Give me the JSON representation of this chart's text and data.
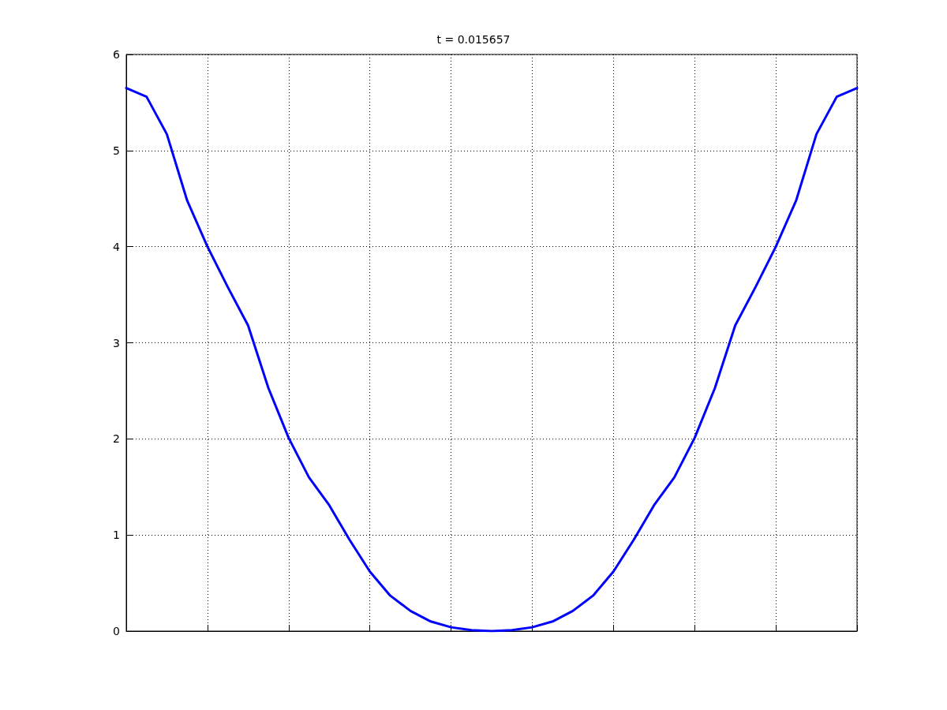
{
  "chart_data": {
    "type": "line",
    "title": "t = 0.015657",
    "categories": [
      null,
      null,
      null,
      null,
      null,
      null,
      null,
      null,
      null,
      null,
      null,
      null,
      null,
      null,
      null,
      null,
      null,
      null,
      null,
      null,
      null,
      null,
      null,
      null,
      null,
      null,
      null,
      null,
      null,
      null,
      null,
      null,
      null,
      null,
      null,
      null,
      null
    ],
    "series": [
      {
        "color": "#0000ff",
        "values": [
          5.65,
          5.56,
          5.17,
          4.48,
          4.0,
          3.58,
          3.18,
          2.53,
          2.01,
          1.6,
          1.31,
          0.95,
          0.62,
          0.37,
          0.21,
          0.1,
          0.04,
          0.01,
          0,
          0.01,
          0.04,
          0.1,
          0.21,
          0.37,
          0.62,
          0.95,
          1.31,
          1.6,
          2.01,
          2.53,
          3.18,
          3.58,
          4.0,
          4.48,
          5.17,
          5.56,
          5.65
        ]
      }
    ],
    "ylim": [
      0,
      6
    ],
    "yticks": [
      0,
      1,
      2,
      3,
      4,
      5,
      6
    ],
    "grid": true,
    "marker": "none",
    "line_style": "solid"
  }
}
